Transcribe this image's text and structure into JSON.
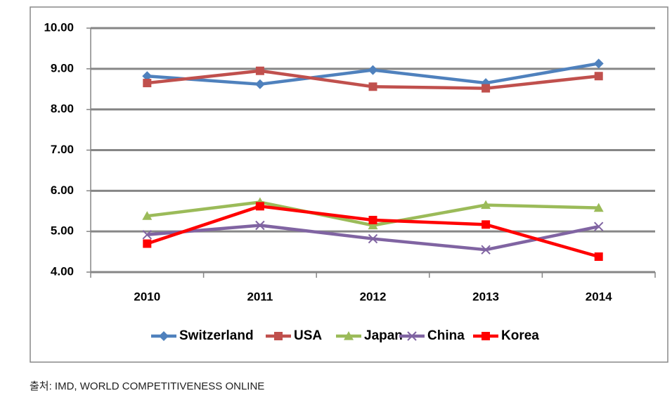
{
  "chart_data": {
    "type": "line",
    "categories": [
      "2010",
      "2011",
      "2012",
      "2013",
      "2014"
    ],
    "series": [
      {
        "name": "Switzerland",
        "color": "#4f81bd",
        "marker": "diamond",
        "values": [
          8.82,
          8.62,
          8.97,
          8.65,
          9.13
        ]
      },
      {
        "name": "USA",
        "color": "#c0504d",
        "marker": "square",
        "values": [
          8.65,
          8.95,
          8.56,
          8.52,
          8.82
        ]
      },
      {
        "name": "Japan",
        "color": "#9bbb59",
        "marker": "triangle",
        "values": [
          5.38,
          5.72,
          5.15,
          5.65,
          5.58
        ]
      },
      {
        "name": "China",
        "color": "#8064a2",
        "marker": "x",
        "values": [
          4.92,
          5.15,
          4.82,
          4.55,
          5.12
        ]
      },
      {
        "name": "Korea",
        "color": "#ff0000",
        "marker": "square",
        "values": [
          4.7,
          5.62,
          5.28,
          5.17,
          4.38
        ]
      }
    ],
    "ylim": [
      4,
      10
    ],
    "yticks": [
      {
        "value": 4,
        "label": "4.00"
      },
      {
        "value": 5,
        "label": "5.00"
      },
      {
        "value": 6,
        "label": "6.00"
      },
      {
        "value": 7,
        "label": "7.00"
      },
      {
        "value": 8,
        "label": "8.00"
      },
      {
        "value": 9,
        "label": "9.00"
      },
      {
        "value": 10,
        "label": "10.00"
      }
    ],
    "grid": true,
    "legend": "bottom",
    "source": "출처: IMD, WORLD COMPETITIVENESS ONLINE"
  }
}
